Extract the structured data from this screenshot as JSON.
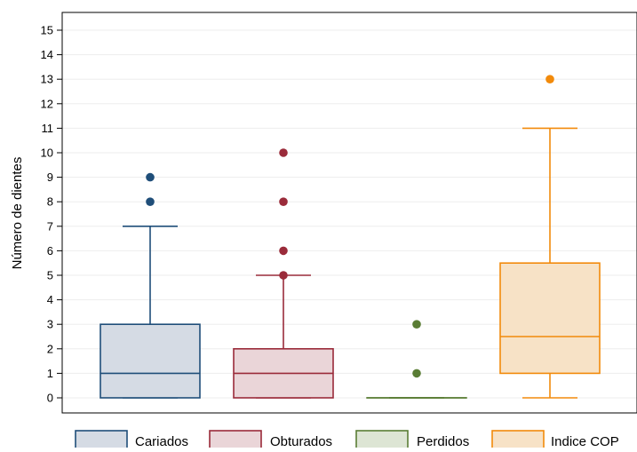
{
  "chart_data": {
    "type": "boxplot",
    "ylabel": "Número de dientes",
    "ylim": [
      0,
      15
    ],
    "yticks": [
      0,
      1,
      2,
      3,
      4,
      5,
      6,
      7,
      8,
      9,
      10,
      11,
      12,
      13,
      14,
      15
    ],
    "grid": true,
    "legend_position": "bottom",
    "series": [
      {
        "name": "Cariados",
        "fill": "#d5dbe4",
        "stroke": "#1f4e79",
        "whisker_low": 0,
        "q1": 0,
        "median": 1,
        "q3": 3,
        "whisker_high": 7,
        "outliers": [
          8,
          9
        ]
      },
      {
        "name": "Obturados",
        "fill": "#ead5d8",
        "stroke": "#9a2b3a",
        "whisker_low": 0,
        "q1": 0,
        "median": 1,
        "q3": 2,
        "whisker_high": 5,
        "outliers": [
          5,
          6,
          8,
          10
        ]
      },
      {
        "name": "Perdidos",
        "fill": "#dde5d4",
        "stroke": "#5a7d35",
        "whisker_low": 0,
        "q1": 0,
        "median": 0,
        "q3": 0,
        "whisker_high": 0,
        "outliers": [
          1,
          3
        ]
      },
      {
        "name": "Indice COP",
        "fill": "#f7e2c6",
        "stroke": "#f28a0b",
        "whisker_low": 0,
        "q1": 1,
        "median": 2.5,
        "q3": 5.5,
        "whisker_high": 11,
        "outliers": [
          13
        ]
      }
    ]
  }
}
